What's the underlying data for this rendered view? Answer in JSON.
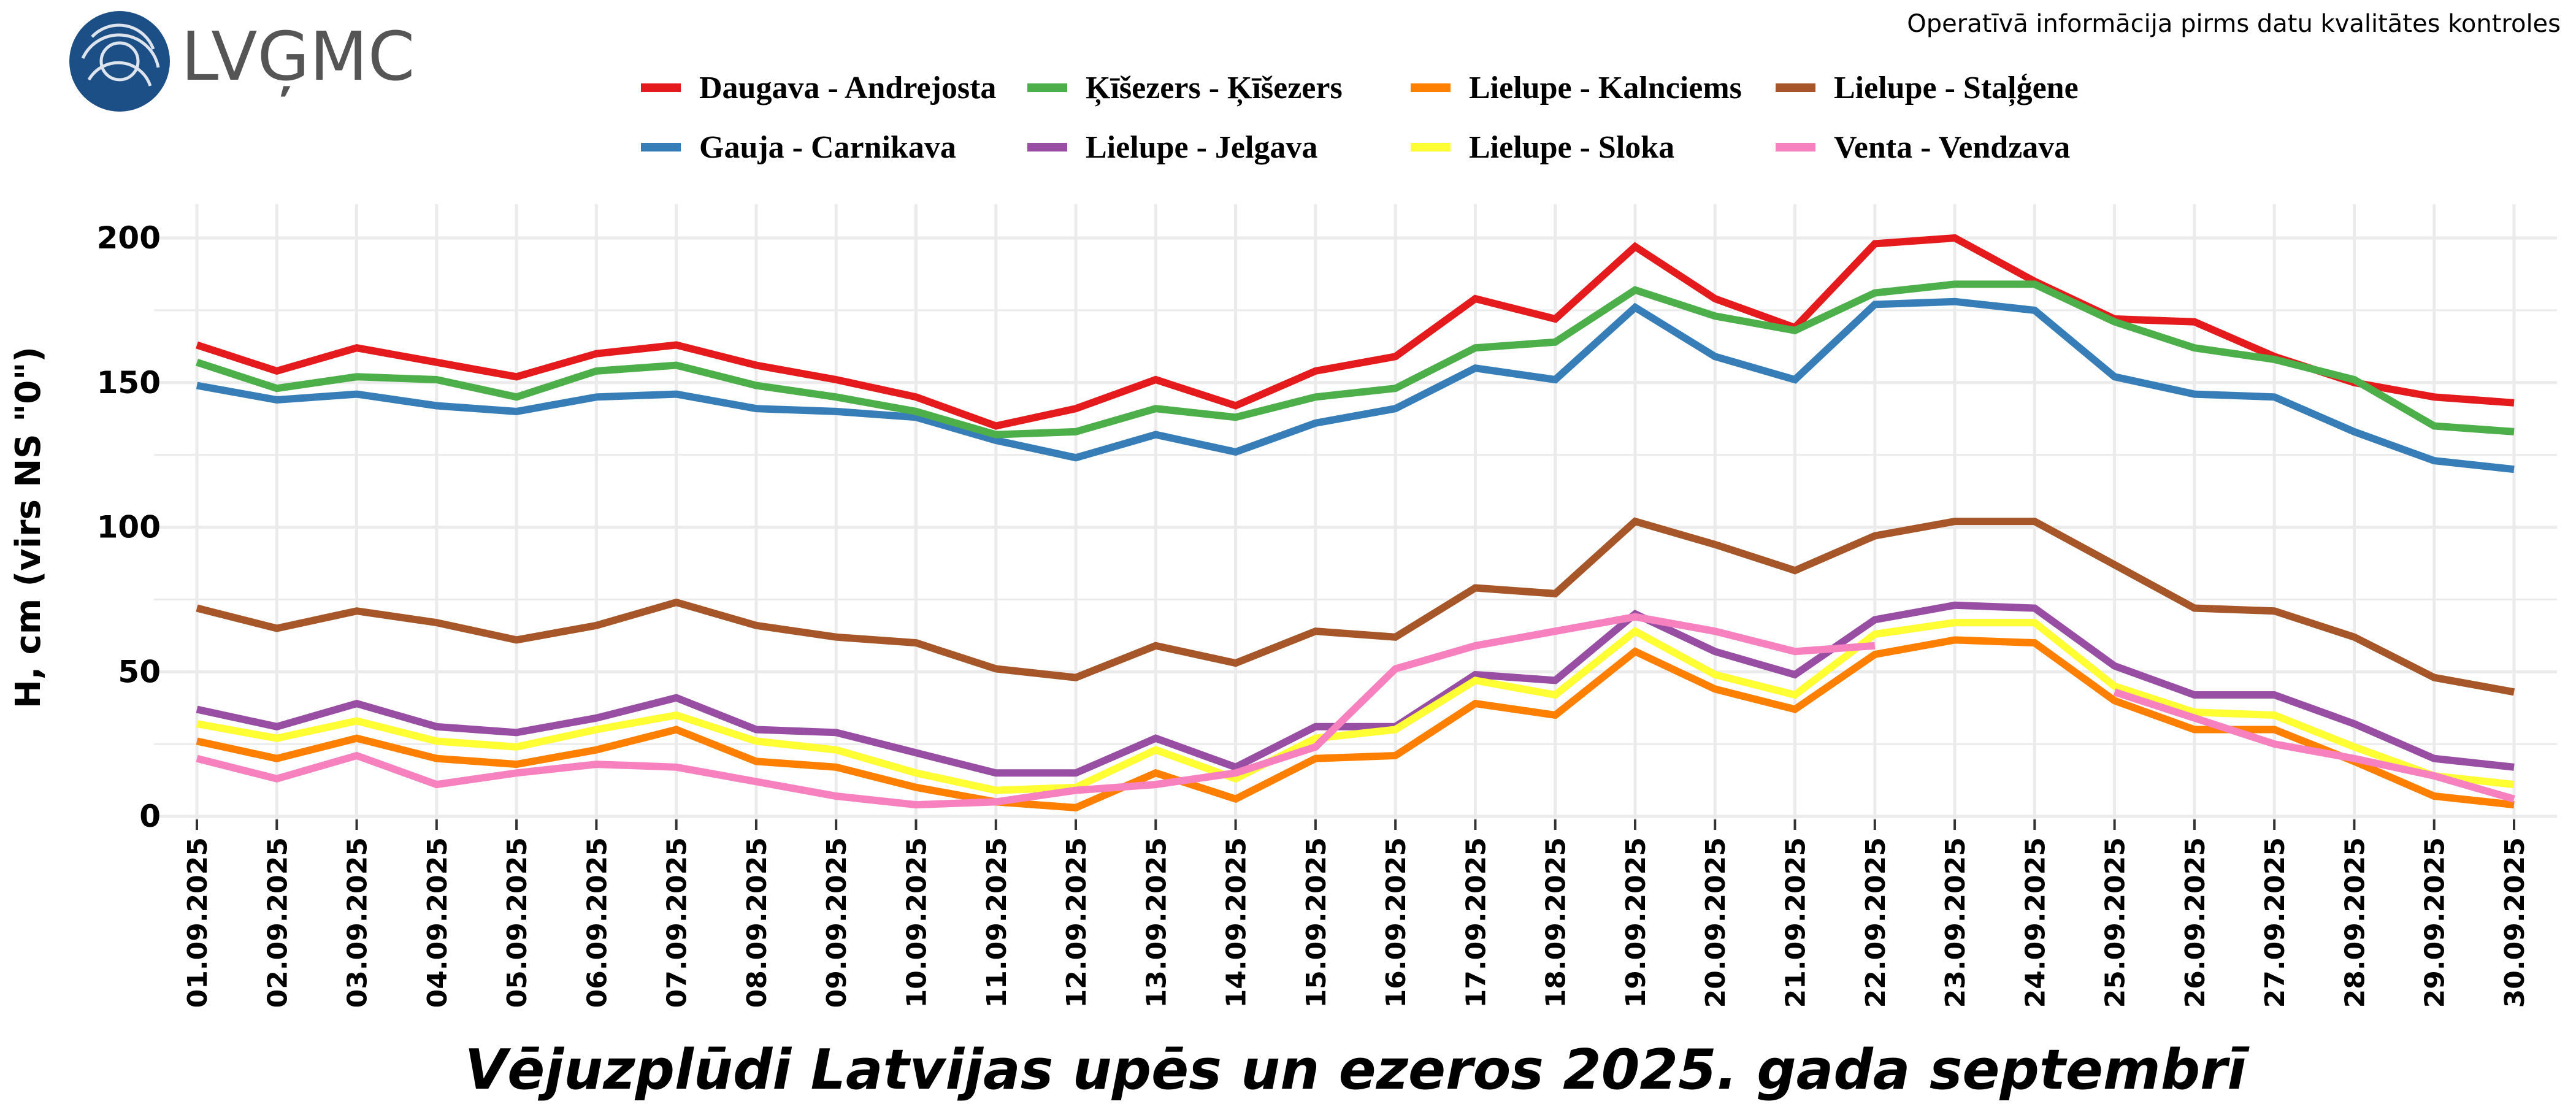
{
  "header": {
    "logo_text": "LVĢMC",
    "note": "Operatīvā informācija pirms datu kvalitātes kontroles"
  },
  "chart_data": {
    "type": "line",
    "title": "Vējuzplūdi Latvijas upēs un ezeros 2025. gada septembrī",
    "xlabel": "",
    "ylabel": "H, cm (virs NS \"0\")",
    "ylim": [
      0,
      200
    ],
    "yticks": [
      0,
      50,
      100,
      150,
      200
    ],
    "grid": true,
    "legend_placement": "top",
    "categories": [
      "01.09.2025",
      "02.09.2025",
      "03.09.2025",
      "04.09.2025",
      "05.09.2025",
      "06.09.2025",
      "07.09.2025",
      "08.09.2025",
      "09.09.2025",
      "10.09.2025",
      "11.09.2025",
      "12.09.2025",
      "13.09.2025",
      "14.09.2025",
      "15.09.2025",
      "16.09.2025",
      "17.09.2025",
      "18.09.2025",
      "19.09.2025",
      "20.09.2025",
      "21.09.2025",
      "22.09.2025",
      "23.09.2025",
      "24.09.2025",
      "25.09.2025",
      "26.09.2025",
      "27.09.2025",
      "28.09.2025",
      "29.09.2025",
      "30.09.2025"
    ],
    "series": [
      {
        "name": "Daugava - Andrejosta",
        "color": "#e41a1c",
        "values": [
          163,
          154,
          162,
          157,
          152,
          160,
          163,
          156,
          151,
          145,
          135,
          141,
          151,
          142,
          154,
          159,
          179,
          172,
          197,
          179,
          169,
          198,
          200,
          185,
          172,
          171,
          159,
          150,
          145,
          143
        ]
      },
      {
        "name": "Gauja - Carnikava",
        "color": "#377eb8",
        "values": [
          149,
          144,
          146,
          142,
          140,
          145,
          146,
          141,
          140,
          138,
          130,
          124,
          132,
          126,
          136,
          141,
          155,
          151,
          176,
          159,
          151,
          177,
          178,
          175,
          152,
          146,
          145,
          133,
          123,
          120
        ]
      },
      {
        "name": "Ķīšezers - Ķīšezers",
        "color": "#4daf4a",
        "values": [
          157,
          148,
          152,
          151,
          145,
          154,
          156,
          149,
          145,
          140,
          132,
          133,
          141,
          138,
          145,
          148,
          162,
          164,
          182,
          173,
          168,
          181,
          184,
          184,
          171,
          162,
          158,
          151,
          135,
          133
        ]
      },
      {
        "name": "Lielupe - Jelgava",
        "color": "#984ea3",
        "values": [
          37,
          31,
          39,
          31,
          29,
          34,
          41,
          30,
          29,
          22,
          15,
          15,
          27,
          17,
          31,
          31,
          49,
          47,
          70,
          57,
          49,
          68,
          73,
          72,
          52,
          42,
          42,
          32,
          20,
          17
        ]
      },
      {
        "name": "Lielupe - Kalnciems",
        "color": "#ff7f00",
        "values": [
          26,
          20,
          27,
          20,
          18,
          23,
          30,
          19,
          17,
          10,
          5,
          3,
          15,
          6,
          20,
          21,
          39,
          35,
          57,
          44,
          37,
          56,
          61,
          60,
          40,
          30,
          30,
          19,
          7,
          4
        ]
      },
      {
        "name": "Lielupe - Sloka",
        "color": "#ffff33",
        "values": [
          32,
          27,
          33,
          26,
          24,
          30,
          35,
          26,
          23,
          15,
          9,
          10,
          23,
          13,
          27,
          30,
          47,
          42,
          64,
          49,
          42,
          63,
          67,
          67,
          45,
          36,
          35,
          24,
          14,
          11
        ]
      },
      {
        "name": "Lielupe - Staļģene",
        "color": "#a65628",
        "values": [
          72,
          65,
          71,
          67,
          61,
          66,
          74,
          66,
          62,
          60,
          51,
          48,
          59,
          53,
          64,
          62,
          79,
          77,
          102,
          94,
          85,
          97,
          102,
          102,
          87,
          72,
          71,
          62,
          48,
          43
        ]
      },
      {
        "name": "Venta - Vendzava",
        "color": "#f781bf",
        "values": [
          20,
          13,
          21,
          11,
          15,
          18,
          17,
          12,
          7,
          4,
          5,
          9,
          11,
          15,
          24,
          51,
          59,
          64,
          69,
          64,
          57,
          59,
          null,
          null,
          43,
          34,
          25,
          20,
          14,
          6
        ]
      }
    ]
  }
}
